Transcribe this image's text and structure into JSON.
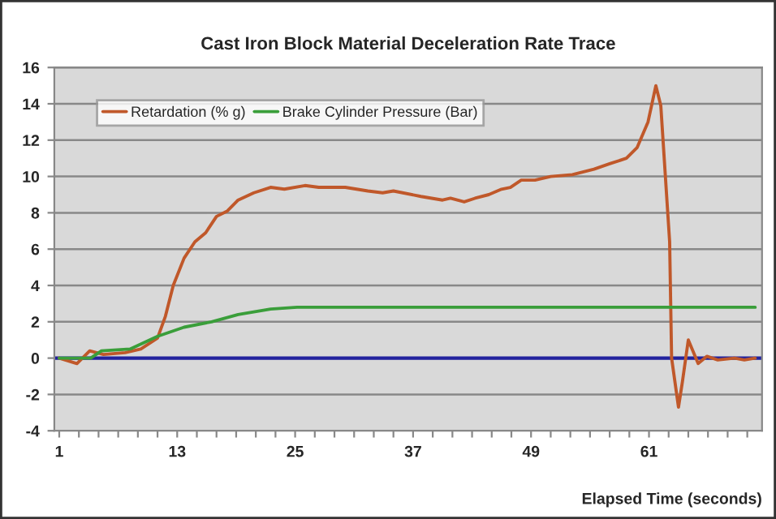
{
  "chart_data": {
    "type": "line",
    "title": "Cast Iron Block Material Deceleration Rate Trace",
    "xlabel": "Elapsed Time (seconds)",
    "series": [
      {
        "name": "Retardation (% g)",
        "color": "#c0582a",
        "x": [
          1,
          2.8,
          4.1,
          5.5,
          7.7,
          9.3,
          11,
          11.8,
          12.6,
          13.7,
          14.8,
          15.9,
          17,
          18.1,
          19.2,
          20.8,
          22.5,
          23.9,
          26,
          27.4,
          30.1,
          32.4,
          33.9,
          35,
          37.8,
          40,
          40.8,
          42.2,
          43.3,
          44.7,
          46,
          46.9,
          48,
          49.4,
          51,
          53.2,
          55.4,
          57,
          58.7,
          59.8,
          60.9,
          61.7,
          62.2,
          63.1,
          63.3,
          64,
          64.4,
          65,
          66,
          66.9,
          68,
          69.7,
          70.7,
          71.8
        ],
        "values": [
          0,
          -0.3,
          0.4,
          0.2,
          0.3,
          0.5,
          1.1,
          2.3,
          4.0,
          5.5,
          6.4,
          6.9,
          7.8,
          8.1,
          8.7,
          9.1,
          9.4,
          9.3,
          9.5,
          9.4,
          9.4,
          9.2,
          9.1,
          9.2,
          8.9,
          8.7,
          8.8,
          8.6,
          8.8,
          9.0,
          9.3,
          9.4,
          9.8,
          9.8,
          10.0,
          10.1,
          10.4,
          10.7,
          11.0,
          11.6,
          13.0,
          15.0,
          13.9,
          6.4,
          0,
          -2.7,
          -1.3,
          1.0,
          -0.3,
          0.1,
          -0.1,
          0,
          -0.1,
          0
        ]
      },
      {
        "name": "Brake Cylinder Pressure (Bar)",
        "color": "#3a9e3a",
        "x": [
          1,
          4.2,
          5.3,
          8.2,
          11,
          13.7,
          16.5,
          19.2,
          22.5,
          25.2,
          35,
          45,
          55,
          65,
          71.8
        ],
        "values": [
          0,
          0,
          0.4,
          0.5,
          1.2,
          1.7,
          2.0,
          2.4,
          2.7,
          2.8,
          2.8,
          2.8,
          2.8,
          2.8,
          2.8
        ]
      }
    ],
    "ref_lines": [
      {
        "axis": "y",
        "value": 0,
        "color": "#22229e"
      }
    ],
    "xlim": [
      0.5,
      72.5
    ],
    "xticks": [
      1,
      {
        "value": 3,
        "label": null
      },
      {
        "value": 5,
        "label": null
      },
      {
        "value": 7,
        "label": null
      },
      {
        "value": 9,
        "label": null
      },
      {
        "value": 11,
        "label": null
      },
      13,
      {
        "value": 15,
        "label": null
      },
      {
        "value": 17,
        "label": null
      },
      {
        "value": 19,
        "label": null
      },
      {
        "value": 21,
        "label": null
      },
      {
        "value": 23,
        "label": null
      },
      25,
      {
        "value": 27,
        "label": null
      },
      {
        "value": 29,
        "label": null
      },
      {
        "value": 31,
        "label": null
      },
      {
        "value": 33,
        "label": null
      },
      {
        "value": 35,
        "label": null
      },
      37,
      {
        "value": 39,
        "label": null
      },
      {
        "value": 41,
        "label": null
      },
      {
        "value": 43,
        "label": null
      },
      {
        "value": 45,
        "label": null
      },
      {
        "value": 47,
        "label": null
      },
      49,
      {
        "value": 51,
        "label": null
      },
      {
        "value": 53,
        "label": null
      },
      {
        "value": 55,
        "label": null
      },
      {
        "value": 57,
        "label": null
      },
      {
        "value": 59,
        "label": null
      },
      61,
      {
        "value": 63,
        "label": null
      },
      {
        "value": 65,
        "label": null
      },
      {
        "value": 67,
        "label": null
      },
      {
        "value": 69,
        "label": null
      },
      {
        "value": 71,
        "label": null
      }
    ],
    "ylim": [
      -4,
      16
    ],
    "yticks": [
      -4,
      -2,
      0,
      2,
      4,
      6,
      8,
      10,
      12,
      14,
      16
    ],
    "grid": "y",
    "legend": "top left",
    "marker": "none",
    "line_style": "solid"
  }
}
